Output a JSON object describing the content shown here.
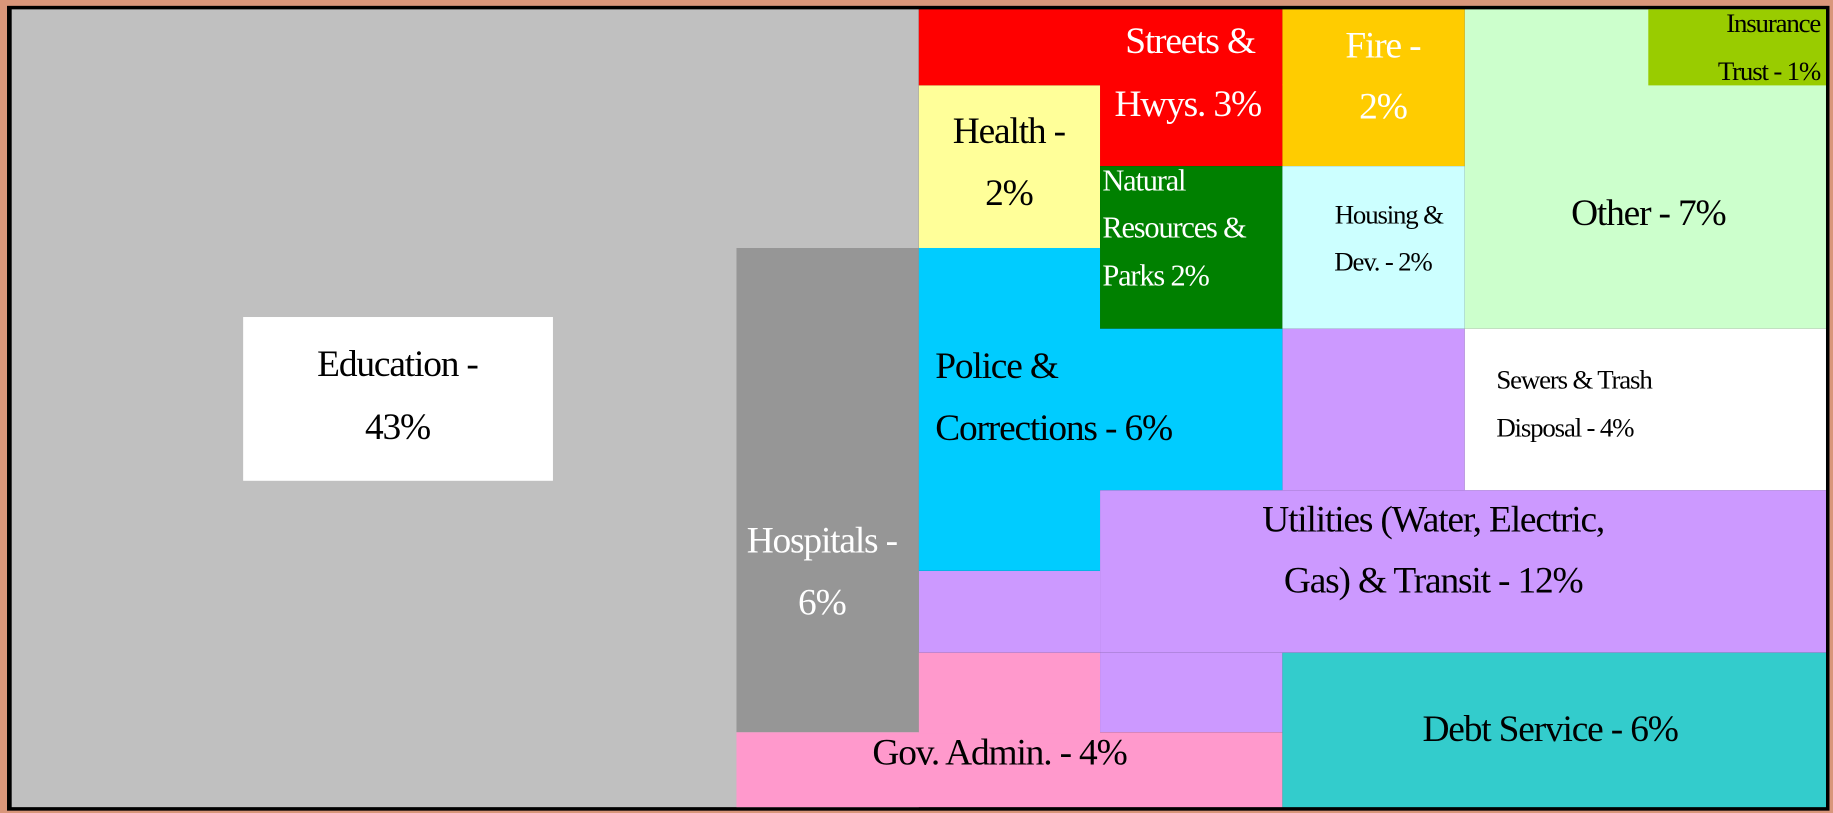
{
  "blocks": [
    {
      "lines": [
        "Education -",
        "43%"
      ]
    },
    {
      "lines": [
        "Hospitals -",
        "6%"
      ]
    },
    {
      "lines": [
        "Gov. Admin. - 4%"
      ]
    },
    {
      "lines": [
        "Streets &",
        "Hwys. 3%"
      ]
    },
    {
      "lines": [
        "Health -",
        "2%"
      ]
    },
    {
      "lines": [
        "Natural",
        "Resources &",
        "Parks 2%"
      ]
    },
    {
      "lines": [
        "Fire -",
        "2%"
      ]
    },
    {
      "lines": [
        "Housing &",
        "Dev. - 2%"
      ]
    },
    {
      "lines": [
        "Other - 7%"
      ]
    },
    {
      "lines": [
        "Insurance",
        "Trust - 1%"
      ]
    },
    {
      "lines": [
        "Police &",
        "Corrections - 6%"
      ]
    },
    {
      "lines": [
        "Utilities (Water, Electric,",
        "Gas) & Transit - 12%"
      ]
    },
    {
      "lines": [
        "Sewers & Trash",
        "Disposal - 4%"
      ]
    },
    {
      "lines": [
        "Debt Service - 6%"
      ]
    }
  ]
}
